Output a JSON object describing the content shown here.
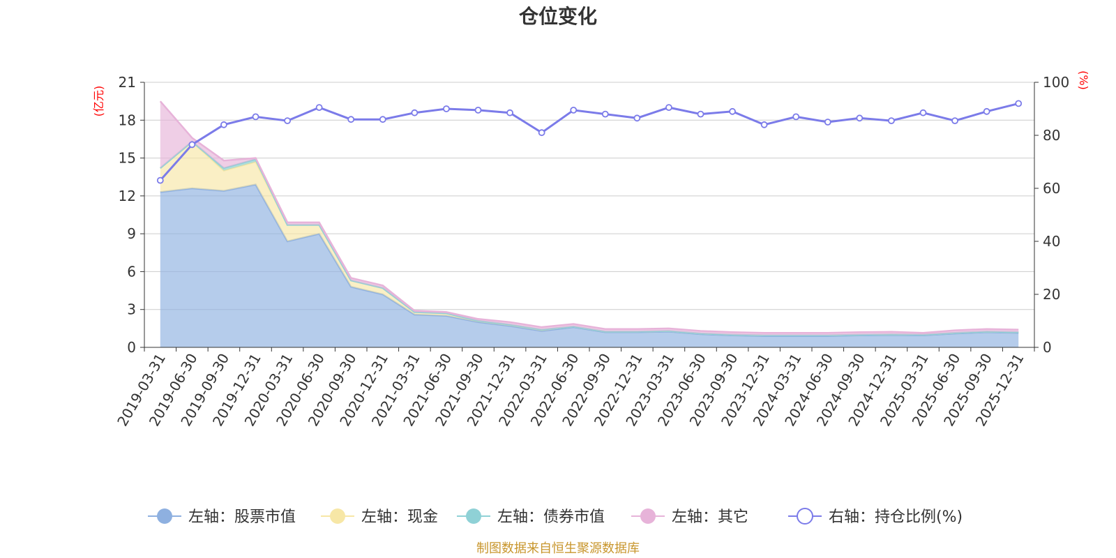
{
  "chart_data": {
    "type": "area",
    "title": "仓位变化",
    "source": "制图数据来自恒生聚源数据库",
    "left_axis": {
      "unit": "(亿元)",
      "ticks": [
        0,
        3,
        6,
        9,
        12,
        15,
        18,
        21
      ],
      "range": [
        0,
        21
      ]
    },
    "right_axis": {
      "unit": "(%)",
      "ticks": [
        0,
        20,
        40,
        60,
        80,
        100
      ],
      "range": [
        0,
        100
      ]
    },
    "categories": [
      "2019-03-31",
      "2019-06-30",
      "2019-09-30",
      "2019-12-31",
      "2020-03-31",
      "2020-06-30",
      "2020-09-30",
      "2020-12-31",
      "2021-03-31",
      "2021-06-30",
      "2021-09-30",
      "2021-12-31",
      "2022-03-31",
      "2022-06-30",
      "2022-09-30",
      "2022-12-31",
      "2023-03-31",
      "2023-06-30",
      "2023-09-30",
      "2023-12-31",
      "2024-03-31",
      "2024-06-30",
      "2024-09-30",
      "2024-12-31",
      "2025-03-31",
      "2025-06-30",
      "2025-09-30",
      "2025-12-31"
    ],
    "series": [
      {
        "name": "左轴：股票市值",
        "axis": "left",
        "stack": true,
        "color": "#8eb0e0",
        "values": [
          12.3,
          12.6,
          12.4,
          12.9,
          8.4,
          9.0,
          4.8,
          4.2,
          2.6,
          2.5,
          2.0,
          1.7,
          1.3,
          1.6,
          1.2,
          1.2,
          1.25,
          1.05,
          0.95,
          0.9,
          0.9,
          0.9,
          0.95,
          0.98,
          0.95,
          1.1,
          1.2,
          1.15
        ]
      },
      {
        "name": "左轴：现金",
        "axis": "left",
        "stack": true,
        "color": "#f7e7a6",
        "values": [
          1.9,
          3.7,
          1.6,
          1.8,
          1.3,
          0.7,
          0.5,
          0.5,
          0.2,
          0.2,
          0.1,
          0.1,
          0.1,
          0.05,
          0.05,
          0.05,
          0.05,
          0.05,
          0.05,
          0.05,
          0.05,
          0.05,
          0.05,
          0.05,
          0.05,
          0.05,
          0.05,
          0.05
        ]
      },
      {
        "name": "左轴：债券市值",
        "axis": "left",
        "stack": true,
        "color": "#8fd1d6",
        "values": [
          0,
          0,
          0.2,
          0.2,
          0,
          0,
          0,
          0,
          0,
          0,
          0,
          0,
          0,
          0,
          0,
          0,
          0,
          0,
          0,
          0,
          0,
          0,
          0,
          0,
          0,
          0,
          0,
          0
        ]
      },
      {
        "name": "左轴：其它",
        "axis": "left",
        "stack": true,
        "color": "#e7b3d9",
        "values": [
          5.3,
          0.3,
          0.6,
          0.1,
          0.2,
          0.2,
          0.2,
          0.2,
          0.1,
          0.1,
          0.15,
          0.2,
          0.2,
          0.2,
          0.2,
          0.2,
          0.2,
          0.2,
          0.2,
          0.2,
          0.2,
          0.2,
          0.2,
          0.2,
          0.15,
          0.2,
          0.2,
          0.2
        ]
      },
      {
        "name": "右轴：持仓比例(%)",
        "axis": "right",
        "type": "line",
        "color": "#7b7be9",
        "values": [
          63.0,
          76.5,
          84.0,
          87.0,
          85.5,
          90.5,
          86.0,
          86.0,
          88.5,
          90.0,
          89.5,
          88.5,
          81.0,
          89.5,
          88.0,
          86.5,
          90.5,
          88.0,
          89.0,
          84.0,
          87.0,
          85.0,
          86.5,
          85.5,
          88.5,
          85.5,
          89.0,
          92.0
        ]
      }
    ],
    "legend": [
      "左轴：股票市值",
      "左轴：现金",
      "左轴：债券市值",
      "左轴：其它",
      "右轴：持仓比例(%)"
    ]
  }
}
